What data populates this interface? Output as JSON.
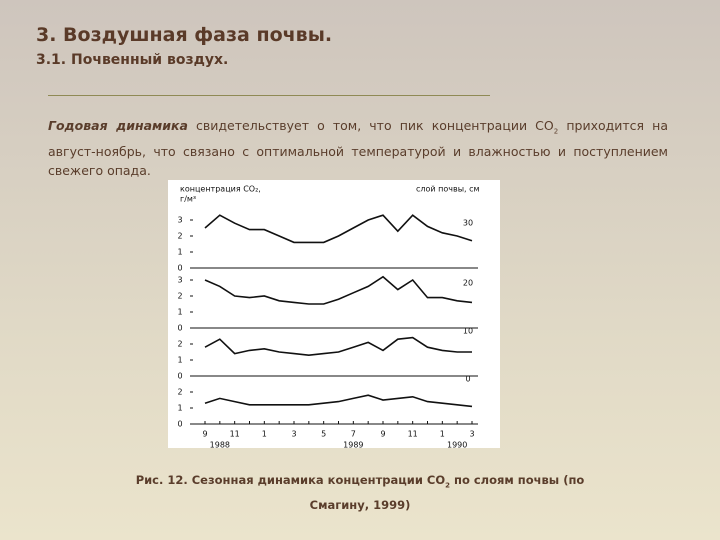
{
  "header": {
    "title": "3. Воздушная фаза почвы.",
    "subtitle": "3.1. Почвенный воздух."
  },
  "paragraph": {
    "bold": "Годовая динамика",
    "text_1": " свидетельствует о том, что пик концентрации CO",
    "subscript": "2",
    "text_2": " приходится на август-ноябрь, что связано с оптимальной температурой и влажностью и поступлением свежего опада."
  },
  "caption": {
    "text_1": "Рис. 12. Сезонная динамика концентрации CO",
    "subscript": "2",
    "text_2": " по слоям почвы (по Смагину, 1999)"
  },
  "chart_data": [
    {
      "type": "line",
      "y_label_lines": [
        "концентрация CO₂,",
        "г/м³"
      ],
      "legend_title": "слой почвы, см",
      "ylim": [
        0,
        3.5
      ],
      "yticks": [
        0,
        1,
        2,
        3
      ],
      "series": [
        {
          "name": "30",
          "color": "#111111",
          "values": [
            2.5,
            3.3,
            2.8,
            2.4,
            2.4,
            2.0,
            1.6,
            1.6,
            1.6,
            2.0,
            2.5,
            3.0,
            3.3,
            2.3,
            3.3,
            2.6,
            2.2,
            2.0,
            1.7
          ]
        }
      ]
    },
    {
      "type": "line",
      "ylim": [
        0,
        3.5
      ],
      "yticks": [
        0,
        1,
        2,
        3
      ],
      "series": [
        {
          "name": "20",
          "color": "#111111",
          "values": [
            3.0,
            2.6,
            2.0,
            1.9,
            2.0,
            1.7,
            1.6,
            1.5,
            1.5,
            1.8,
            2.2,
            2.6,
            3.2,
            2.4,
            3.0,
            1.9,
            1.9,
            1.7,
            1.6
          ]
        }
      ]
    },
    {
      "type": "line",
      "ylim": [
        0,
        3.5
      ],
      "yticks": [
        0,
        1,
        2
      ],
      "series": [
        {
          "name": "10",
          "color": "#111111",
          "values": [
            1.8,
            2.3,
            1.4,
            1.6,
            1.7,
            1.5,
            1.4,
            1.3,
            1.4,
            1.5,
            1.8,
            2.1,
            1.6,
            2.3,
            2.4,
            1.8,
            1.6,
            1.5,
            1.5
          ]
        }
      ]
    },
    {
      "type": "line",
      "ylim": [
        0,
        3.5
      ],
      "yticks": [
        0,
        1,
        2
      ],
      "categories": [
        "9",
        null,
        "11",
        null,
        "1",
        null,
        "3",
        null,
        "5",
        null,
        "7",
        null,
        "9",
        null,
        "11",
        null,
        "1",
        null,
        "3"
      ],
      "years": [
        "1988",
        "1989",
        "1990"
      ],
      "series": [
        {
          "name": "0",
          "color": "#111111",
          "values": [
            1.3,
            1.6,
            1.4,
            1.2,
            1.2,
            1.2,
            1.2,
            1.2,
            1.3,
            1.4,
            1.6,
            1.8,
            1.5,
            1.6,
            1.7,
            1.4,
            1.3,
            1.2,
            1.1
          ]
        }
      ]
    }
  ]
}
